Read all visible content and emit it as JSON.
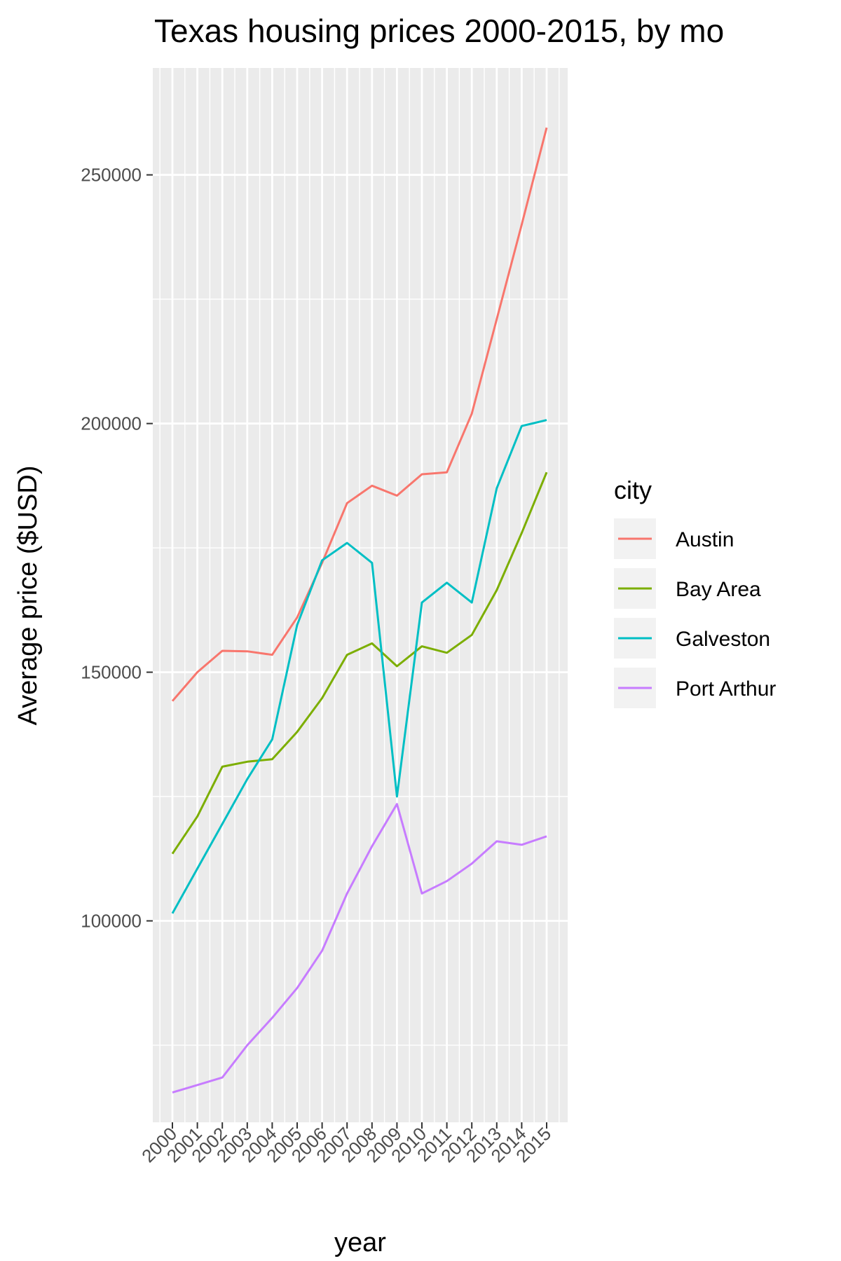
{
  "chart_data": {
    "type": "line",
    "title": "Texas housing prices 2000-2015, by mo",
    "xlabel": "year",
    "ylabel": "Average price ($USD)",
    "x": [
      "2000",
      "2001",
      "2002",
      "2003",
      "2004",
      "2005",
      "2006",
      "2007",
      "2008",
      "2009",
      "2010",
      "2011",
      "2012",
      "2013",
      "2014",
      "2015"
    ],
    "y_ticks": [
      100000,
      150000,
      200000,
      250000
    ],
    "y_tick_labels": [
      "100000",
      "150000",
      "200000",
      "250000"
    ],
    "ylim": [
      59500,
      271500
    ],
    "grid": true,
    "legend": {
      "title": "city",
      "position": "right"
    },
    "series": [
      {
        "name": "Austin",
        "color": "#F8766D",
        "values": [
          144200,
          150000,
          154300,
          154200,
          153500,
          161000,
          172000,
          184000,
          187500,
          185500,
          189800,
          190200,
          202000,
          221000,
          240000,
          259500
        ]
      },
      {
        "name": "Bay Area",
        "color": "#7CAE00",
        "values": [
          113500,
          121000,
          131000,
          132000,
          132500,
          138000,
          144800,
          153500,
          155800,
          151200,
          155200,
          153900,
          157500,
          166500,
          178000,
          190200
        ]
      },
      {
        "name": "Galveston",
        "color": "#00BFC4",
        "values": [
          101500,
          110500,
          119500,
          128500,
          136500,
          159500,
          172500,
          176000,
          172000,
          125000,
          164000,
          168000,
          164000,
          187000,
          199500,
          200700
        ]
      },
      {
        "name": "Port Arthur",
        "color": "#C77CFF",
        "values": [
          65500,
          67000,
          68500,
          75000,
          80500,
          86500,
          94000,
          105500,
          115000,
          123500,
          105500,
          108000,
          111500,
          116000,
          115300,
          117000
        ]
      }
    ]
  }
}
